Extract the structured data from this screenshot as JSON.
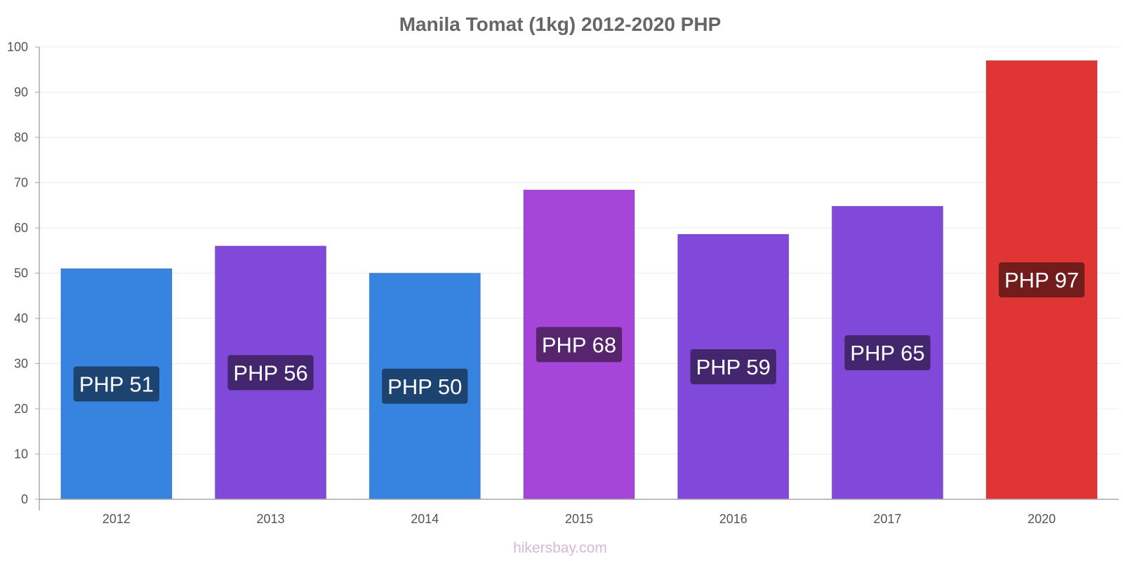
{
  "chart_data": {
    "type": "bar",
    "title": "Manila Tomat (1kg) 2012-2020 PHP",
    "categories": [
      "2012",
      "2013",
      "2014",
      "2015",
      "2016",
      "2017",
      "2020"
    ],
    "values": [
      51,
      56,
      50,
      68.4,
      58.6,
      64.8,
      97
    ],
    "data_labels": [
      "PHP 51",
      "PHP 56",
      "PHP 50",
      "PHP 68",
      "PHP 59",
      "PHP 65",
      "PHP 97"
    ],
    "bar_colors": [
      "#3683e0",
      "#8049d9",
      "#3683e0",
      "#a646d9",
      "#8049d9",
      "#8049d9",
      "#e03535"
    ],
    "label_bg_colors": [
      "#1d4370",
      "#44266e",
      "#1d4370",
      "#57246e",
      "#44266e",
      "#44266e",
      "#721c1c"
    ],
    "y_ticks": [
      0,
      10,
      20,
      30,
      40,
      50,
      60,
      70,
      80,
      90,
      100
    ],
    "ylim": [
      0,
      100
    ],
    "xlabel": "",
    "ylabel": "",
    "grid": true,
    "legend": "none"
  },
  "source": "hikersbay.com"
}
